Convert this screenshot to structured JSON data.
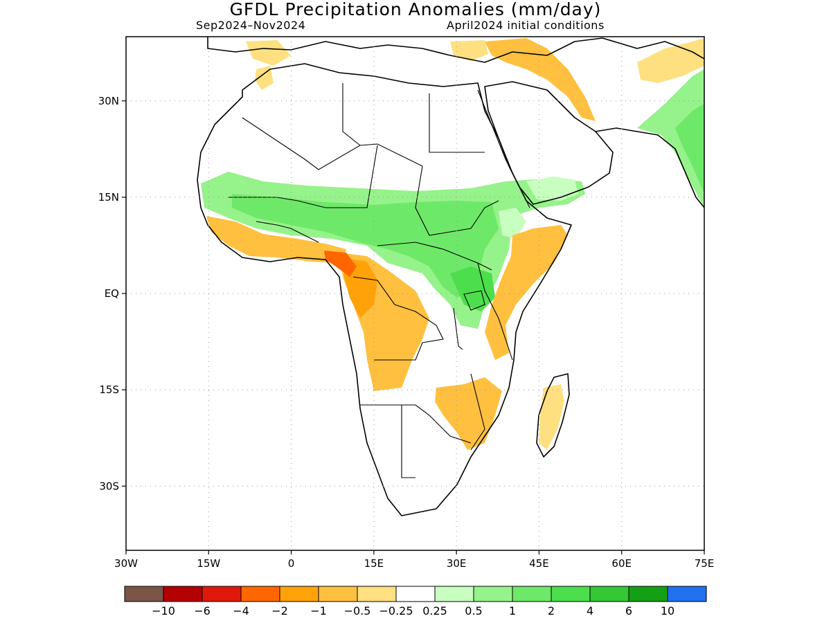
{
  "title": "GFDL Precipitation Anomalies (mm/day)",
  "period": "Sep2024–Nov2024",
  "initial_conditions": "April2024 initial conditions",
  "axes": {
    "lon_labels": [
      "30W",
      "15W",
      "0",
      "15E",
      "30E",
      "45E",
      "60E",
      "75E"
    ],
    "lat_labels": [
      "30N",
      "15N",
      "EQ",
      "15S",
      "30S"
    ],
    "lon_range": [
      -30,
      75
    ],
    "lat_range": [
      -40,
      40
    ],
    "grid": "dotted"
  },
  "colorbar": {
    "colors": [
      "#7a5548",
      "#b40000",
      "#e01a0a",
      "#ff6600",
      "#ffa20a",
      "#ffc040",
      "#ffe080",
      "#ffffff",
      "#c8ffc0",
      "#96f28a",
      "#6ee868",
      "#4cde4c",
      "#34c834",
      "#14a014",
      "#2070f0"
    ],
    "labels": [
      "−10",
      "−6",
      "−4",
      "−2",
      "−1",
      "−0.5",
      "−0.25",
      "0.25",
      "0.5",
      "1",
      "2",
      "4",
      "6",
      "10"
    ]
  },
  "colors": {
    "dry_strong": "#ff6600",
    "dry_moderate": "#ffa20a",
    "dry": "#ffc040",
    "dry_light": "#ffe080",
    "wet_light": "#c8ffc0",
    "wet": "#96f28a",
    "wet_moderate": "#6ee868",
    "wet_strong": "#4cde4c"
  }
}
